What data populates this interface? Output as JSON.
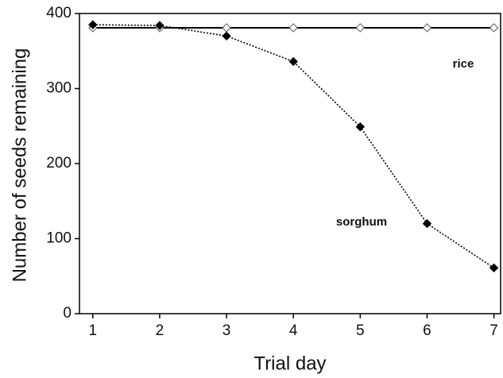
{
  "chart_data": {
    "type": "line",
    "x_label": "Trial day",
    "y_label": "Number of seeds remaining",
    "x": [
      1,
      2,
      3,
      4,
      5,
      6,
      7
    ],
    "series": [
      {
        "name": "rice",
        "color": "#000000",
        "dashed": false,
        "marker_filled": false,
        "values": [
          381,
          381,
          381,
          381,
          381,
          381,
          381
        ]
      },
      {
        "name": "sorghum",
        "color": "#000000",
        "dashed": true,
        "marker_filled": true,
        "values": [
          385,
          384,
          370,
          336,
          249,
          120,
          61
        ]
      }
    ],
    "xlim": [
      0.8,
      7.1
    ],
    "ylim": [
      0,
      400
    ],
    "xticks": [
      1,
      2,
      3,
      4,
      5,
      6,
      7
    ],
    "yticks": [
      0,
      100,
      200,
      300,
      400
    ],
    "grid": false
  }
}
